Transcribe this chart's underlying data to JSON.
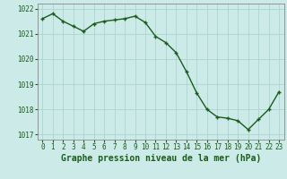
{
  "x": [
    0,
    1,
    2,
    3,
    4,
    5,
    6,
    7,
    8,
    9,
    10,
    11,
    12,
    13,
    14,
    15,
    16,
    17,
    18,
    19,
    20,
    21,
    22,
    23
  ],
  "y": [
    1021.6,
    1021.8,
    1021.5,
    1021.3,
    1021.1,
    1021.4,
    1021.5,
    1021.55,
    1021.6,
    1021.7,
    1021.45,
    1020.9,
    1020.65,
    1020.25,
    1019.5,
    1018.65,
    1018.0,
    1017.7,
    1017.65,
    1017.55,
    1017.2,
    1017.6,
    1018.0,
    1018.7
  ],
  "ylim": [
    1016.8,
    1022.2
  ],
  "yticks": [
    1017,
    1018,
    1019,
    1020,
    1021,
    1022
  ],
  "xticks": [
    0,
    1,
    2,
    3,
    4,
    5,
    6,
    7,
    8,
    9,
    10,
    11,
    12,
    13,
    14,
    15,
    16,
    17,
    18,
    19,
    20,
    21,
    22,
    23
  ],
  "xlabel": "Graphe pression niveau de la mer (hPa)",
  "line_color": "#1a5c1a",
  "marker": "+",
  "marker_size": 3.5,
  "line_width": 1.0,
  "bg_color": "#cceae8",
  "grid_color": "#aad4d0",
  "tick_label_color": "#1a5c1a",
  "xlabel_color": "#1a5c1a",
  "xlabel_fontsize": 7.0,
  "tick_fontsize": 5.5
}
